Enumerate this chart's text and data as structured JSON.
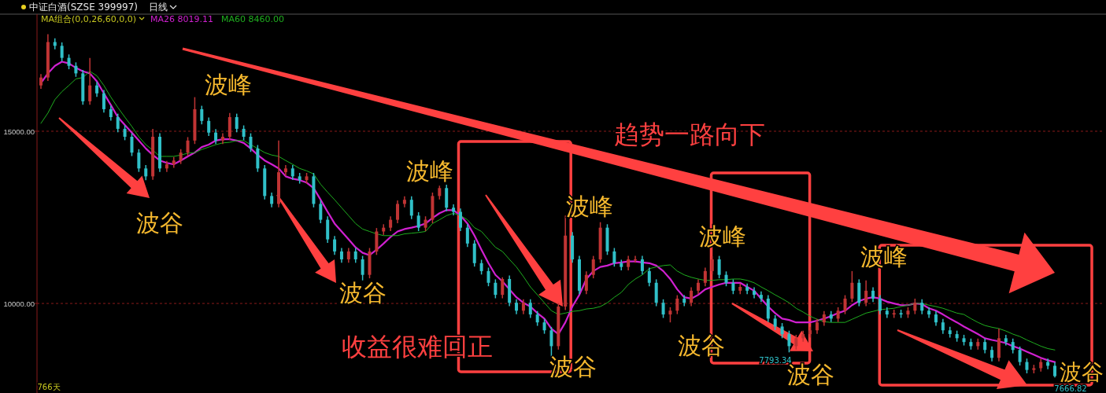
{
  "chart_data": {
    "type": "candlestick",
    "title": "中证白酒(SZSE 399997)",
    "subtitle": "日线",
    "legend_title": "MA组合(0,0,26,60,0,0)",
    "legend": "top left",
    "grid": "y",
    "ylim": [
      7400,
      18400
    ],
    "yticks": [
      {
        "value": 10000,
        "label": "10000.00"
      },
      {
        "value": 15000,
        "label": "15000.00"
      }
    ],
    "categories": [
      null,
      null,
      null,
      null,
      null,
      null,
      null,
      null,
      null,
      null,
      null,
      null,
      null,
      null,
      null,
      null,
      null,
      null,
      null,
      null,
      null,
      null,
      null,
      null,
      null,
      null,
      null,
      null,
      null,
      null,
      null,
      null,
      null,
      null,
      null,
      null,
      null,
      null,
      null,
      null,
      null,
      null,
      null,
      null,
      null,
      null,
      null,
      null,
      null,
      null,
      null,
      null,
      null,
      null,
      null,
      null,
      null,
      null,
      null,
      null,
      null,
      null,
      null,
      null,
      null,
      null,
      null,
      null,
      null,
      null,
      null,
      null,
      null,
      null,
      null,
      null,
      null,
      null,
      null,
      null,
      null,
      null,
      null,
      null,
      null,
      null,
      null,
      null,
      null,
      null,
      null,
      null,
      null,
      null,
      null,
      null,
      null,
      null,
      null,
      null,
      null,
      null,
      null,
      null,
      null,
      null,
      null,
      null,
      null,
      null,
      null,
      null,
      null,
      null,
      null,
      null,
      null,
      null,
      null,
      null,
      null,
      null,
      null,
      null,
      null,
      null,
      null,
      null,
      null,
      null,
      null,
      null,
      null,
      null,
      null,
      null,
      null,
      null,
      null,
      null,
      null,
      null,
      null,
      null,
      null,
      null
    ],
    "ohlc": [
      [
        16330,
        16660,
        16230,
        16560
      ],
      [
        16560,
        17820,
        16460,
        17590
      ],
      [
        17590,
        17700,
        17380,
        17480
      ],
      [
        17480,
        17580,
        17030,
        17130
      ],
      [
        17130,
        17230,
        16800,
        16900
      ],
      [
        16900,
        17000,
        16580,
        16680
      ],
      [
        16680,
        16780,
        15770,
        15870
      ],
      [
        15870,
        17130,
        15770,
        16330
      ],
      [
        16330,
        16430,
        16000,
        16100
      ],
      [
        16100,
        16200,
        15540,
        15640
      ],
      [
        15640,
        15740,
        15310,
        15410
      ],
      [
        15410,
        15510,
        14970,
        15070
      ],
      [
        15070,
        15170,
        14740,
        14840
      ],
      [
        14840,
        14940,
        14280,
        14380
      ],
      [
        14380,
        14480,
        13820,
        13920
      ],
      [
        13920,
        14020,
        13580,
        13690
      ],
      [
        13690,
        15070,
        13590,
        14840
      ],
      [
        14840,
        14940,
        13820,
        13920
      ],
      [
        13920,
        14140,
        13820,
        14040
      ],
      [
        14040,
        14250,
        13940,
        14150
      ],
      [
        14150,
        14480,
        14050,
        14380
      ],
      [
        14380,
        14830,
        14280,
        14730
      ],
      [
        14730,
        15990,
        14630,
        15640
      ],
      [
        15640,
        15740,
        15200,
        15300
      ],
      [
        15300,
        15400,
        14860,
        14960
      ],
      [
        14960,
        15060,
        14630,
        14730
      ],
      [
        14730,
        14940,
        14630,
        14840
      ],
      [
        14840,
        15530,
        14740,
        15410
      ],
      [
        15410,
        15510,
        14970,
        15070
      ],
      [
        15070,
        15170,
        14740,
        14840
      ],
      [
        14840,
        14940,
        14400,
        14500
      ],
      [
        14500,
        14600,
        13820,
        13920
      ],
      [
        13920,
        14020,
        13020,
        13120
      ],
      [
        13120,
        13220,
        12790,
        12890
      ],
      [
        12890,
        14730,
        12790,
        13810
      ],
      [
        13810,
        14020,
        13710,
        13920
      ],
      [
        13920,
        14020,
        13590,
        13690
      ],
      [
        13690,
        13790,
        13480,
        13580
      ],
      [
        13580,
        13790,
        13480,
        13690
      ],
      [
        13690,
        13790,
        12790,
        12890
      ],
      [
        12890,
        12990,
        12330,
        12430
      ],
      [
        12430,
        12530,
        11760,
        11860
      ],
      [
        11860,
        11960,
        11410,
        11510
      ],
      [
        11510,
        11610,
        11180,
        11280
      ],
      [
        11280,
        11610,
        11180,
        11510
      ],
      [
        11510,
        11610,
        11180,
        11280
      ],
      [
        11280,
        11380,
        10670,
        10830
      ],
      [
        10830,
        11610,
        10730,
        11510
      ],
      [
        11510,
        12190,
        11410,
        12090
      ],
      [
        12090,
        12300,
        11990,
        12200
      ],
      [
        12200,
        12530,
        12100,
        12430
      ],
      [
        12430,
        12990,
        12330,
        12890
      ],
      [
        12890,
        13110,
        12790,
        13010
      ],
      [
        13010,
        13110,
        12450,
        12550
      ],
      [
        12550,
        12650,
        12100,
        12200
      ],
      [
        12200,
        12530,
        12100,
        12430
      ],
      [
        12430,
        13220,
        12330,
        13120
      ],
      [
        13120,
        13420,
        13020,
        13350
      ],
      [
        13350,
        13450,
        12680,
        12780
      ],
      [
        12780,
        12880,
        12560,
        12660
      ],
      [
        12660,
        12760,
        12100,
        12200
      ],
      [
        12200,
        12300,
        11640,
        11740
      ],
      [
        11740,
        11840,
        11070,
        11170
      ],
      [
        11170,
        11270,
        10840,
        10940
      ],
      [
        10940,
        11040,
        10500,
        10600
      ],
      [
        10600,
        10700,
        10150,
        10250
      ],
      [
        10250,
        10760,
        10150,
        10710
      ],
      [
        10710,
        10810,
        9920,
        10020
      ],
      [
        10020,
        10120,
        9690,
        9790
      ],
      [
        9790,
        10120,
        9690,
        10020
      ],
      [
        10020,
        10120,
        9580,
        9680
      ],
      [
        9680,
        9780,
        9350,
        9450
      ],
      [
        9450,
        9550,
        9120,
        9220
      ],
      [
        9220,
        9320,
        8420,
        8760
      ],
      [
        8760,
        10010,
        8660,
        9910
      ],
      [
        9910,
        12550,
        9810,
        11970
      ],
      [
        11970,
        12070,
        11180,
        11280
      ],
      [
        11280,
        11380,
        10270,
        10370
      ],
      [
        10370,
        10930,
        10270,
        10830
      ],
      [
        10830,
        11380,
        10730,
        11280
      ],
      [
        11280,
        12360,
        11180,
        12200
      ],
      [
        12200,
        12300,
        11410,
        11510
      ],
      [
        11510,
        11610,
        11070,
        11170
      ],
      [
        11170,
        11270,
        10960,
        11060
      ],
      [
        11060,
        11380,
        10960,
        11280
      ],
      [
        11280,
        11380,
        11180,
        11280
      ],
      [
        11280,
        11380,
        10840,
        10940
      ],
      [
        10940,
        11040,
        10500,
        10600
      ],
      [
        10600,
        10700,
        9920,
        10020
      ],
      [
        10020,
        10120,
        9580,
        9680
      ],
      [
        9680,
        9890,
        9450,
        9790
      ],
      [
        9790,
        10240,
        9690,
        10140
      ],
      [
        10140,
        10240,
        9920,
        10020
      ],
      [
        10020,
        10470,
        9920,
        10370
      ],
      [
        10370,
        10700,
        10270,
        10600
      ],
      [
        10600,
        11040,
        10500,
        10940
      ],
      [
        10940,
        11370,
        10840,
        11280
      ],
      [
        11280,
        11380,
        10730,
        10830
      ],
      [
        10830,
        10930,
        10500,
        10600
      ],
      [
        10600,
        10700,
        10270,
        10370
      ],
      [
        10370,
        10580,
        10270,
        10480
      ],
      [
        10480,
        10580,
        10270,
        10370
      ],
      [
        10370,
        10470,
        10150,
        10250
      ],
      [
        10250,
        10350,
        10040,
        10140
      ],
      [
        10140,
        10240,
        9460,
        9560
      ],
      [
        9560,
        9660,
        9230,
        9330
      ],
      [
        9330,
        9430,
        8990,
        9110
      ],
      [
        9110,
        9210,
        8580,
        8760
      ],
      [
        8760,
        9090,
        8660,
        8990
      ],
      [
        8990,
        9210,
        8890,
        9110
      ],
      [
        9110,
        9320,
        9010,
        9220
      ],
      [
        9220,
        9550,
        9120,
        9450
      ],
      [
        9450,
        9780,
        9350,
        9680
      ],
      [
        9680,
        9780,
        9460,
        9560
      ],
      [
        9560,
        9890,
        9460,
        9790
      ],
      [
        9790,
        10240,
        9690,
        10140
      ],
      [
        10140,
        10940,
        10040,
        10600
      ],
      [
        10600,
        10700,
        9920,
        10020
      ],
      [
        10020,
        10670,
        9920,
        10370
      ],
      [
        10370,
        10470,
        10040,
        10140
      ],
      [
        10140,
        10240,
        9690,
        9790
      ],
      [
        9790,
        9890,
        9580,
        9680
      ],
      [
        9680,
        9820,
        9580,
        9720
      ],
      [
        9720,
        9820,
        9580,
        9680
      ],
      [
        9680,
        9890,
        9580,
        9790
      ],
      [
        9790,
        10140,
        9690,
        10020
      ],
      [
        10020,
        10120,
        9690,
        9790
      ],
      [
        9790,
        9890,
        9580,
        9680
      ],
      [
        9680,
        9780,
        9350,
        9450
      ],
      [
        9450,
        9550,
        9120,
        9220
      ],
      [
        9220,
        9320,
        9010,
        9110
      ],
      [
        9110,
        9210,
        8890,
        8990
      ],
      [
        8990,
        9090,
        8780,
        8880
      ],
      [
        8880,
        8980,
        8660,
        8760
      ],
      [
        8760,
        8980,
        8660,
        8880
      ],
      [
        8880,
        8980,
        8550,
        8650
      ],
      [
        8650,
        8750,
        8320,
        8420
      ],
      [
        8420,
        9270,
        8320,
        8990
      ],
      [
        8990,
        9090,
        8780,
        8880
      ],
      [
        8880,
        8980,
        8550,
        8650
      ],
      [
        8650,
        8750,
        8200,
        8300
      ],
      [
        8300,
        8400,
        7970,
        8070
      ],
      [
        8070,
        8220,
        7970,
        8120
      ],
      [
        8120,
        8400,
        8020,
        8300
      ],
      [
        8300,
        8400,
        8090,
        8190
      ],
      [
        8190,
        8290,
        7850,
        7890
      ]
    ],
    "colors": [
      "#c03434",
      "#c03434",
      "#30c0c8",
      "#30c0c8",
      "#30c0c8",
      "#30c0c8",
      "#30c0c8",
      "#c03434",
      "#30c0c8",
      "#30c0c8",
      "#30c0c8",
      "#30c0c8",
      "#30c0c8",
      "#30c0c8",
      "#30c0c8",
      "#30c0c8",
      "#c03434",
      "#30c0c8",
      "#c03434",
      "#c03434",
      "#c03434",
      "#c03434",
      "#c03434",
      "#30c0c8",
      "#30c0c8",
      "#30c0c8",
      "#c03434",
      "#c03434",
      "#30c0c8",
      "#30c0c8",
      "#30c0c8",
      "#30c0c8",
      "#30c0c8",
      "#30c0c8",
      "#c03434",
      "#c03434",
      "#30c0c8",
      "#30c0c8",
      "#c03434",
      "#30c0c8",
      "#30c0c8",
      "#30c0c8",
      "#30c0c8",
      "#30c0c8",
      "#c03434",
      "#30c0c8",
      "#30c0c8",
      "#c03434",
      "#c03434",
      "#c03434",
      "#c03434",
      "#c03434",
      "#c03434",
      "#30c0c8",
      "#30c0c8",
      "#c03434",
      "#c03434",
      "#c03434",
      "#30c0c8",
      "#30c0c8",
      "#30c0c8",
      "#30c0c8",
      "#30c0c8",
      "#30c0c8",
      "#30c0c8",
      "#30c0c8",
      "#c03434",
      "#30c0c8",
      "#30c0c8",
      "#c03434",
      "#30c0c8",
      "#30c0c8",
      "#30c0c8",
      "#30c0c8",
      "#c03434",
      "#c03434",
      "#30c0c8",
      "#30c0c8",
      "#c03434",
      "#c03434",
      "#c03434",
      "#30c0c8",
      "#30c0c8",
      "#30c0c8",
      "#c03434",
      "#c03434",
      "#30c0c8",
      "#30c0c8",
      "#30c0c8",
      "#30c0c8",
      "#c03434",
      "#c03434",
      "#30c0c8",
      "#c03434",
      "#c03434",
      "#c03434",
      "#c03434",
      "#30c0c8",
      "#30c0c8",
      "#30c0c8",
      "#c03434",
      "#30c0c8",
      "#30c0c8",
      "#30c0c8",
      "#30c0c8",
      "#30c0c8",
      "#30c0c8",
      "#30c0c8",
      "#c03434",
      "#c03434",
      "#c03434",
      "#c03434",
      "#c03434",
      "#30c0c8",
      "#c03434",
      "#c03434",
      "#c03434",
      "#30c0c8",
      "#c03434",
      "#30c0c8",
      "#30c0c8",
      "#30c0c8",
      "#c03434",
      "#30c0c8",
      "#c03434",
      "#c03434",
      "#30c0c8",
      "#30c0c8",
      "#30c0c8",
      "#30c0c8",
      "#30c0c8",
      "#30c0c8",
      "#30c0c8",
      "#30c0c8",
      "#c03434",
      "#30c0c8",
      "#30c0c8",
      "#c03434",
      "#30c0c8",
      "#30c0c8",
      "#30c0c8",
      "#30c0c8",
      "#c03434",
      "#c03434",
      "#30c0c8",
      "#30c0c8"
    ],
    "series": [
      {
        "type": "line",
        "name": "MA26 8019.11",
        "color": "#d020d0",
        "values": [
          16400,
          16680,
          16900,
          17020,
          16970,
          16840,
          16740,
          16680,
          16450,
          16100,
          15760,
          15410,
          15180,
          14960,
          14730,
          14500,
          14310,
          14150,
          14080,
          14040,
          14150,
          14270,
          14380,
          14540,
          14610,
          14730,
          14770,
          14770,
          14730,
          14660,
          14500,
          14310,
          14150,
          14040,
          13920,
          13690,
          13620,
          13580,
          13510,
          13350,
          13010,
          12660,
          12320,
          12090,
          11860,
          11630,
          11470,
          11400,
          11560,
          11740,
          11930,
          12090,
          12160,
          12200,
          12250,
          12320,
          12480,
          12620,
          12710,
          12710,
          12550,
          12320,
          11970,
          11560,
          11170,
          10830,
          10640,
          10410,
          10180,
          10020,
          9910,
          9720,
          9560,
          9270,
          9110,
          9450,
          9910,
          10250,
          10710,
          10940,
          11060,
          11100,
          11170,
          11190,
          11220,
          11220,
          11190,
          11170,
          11100,
          10940,
          10710,
          10410,
          10180,
          10140,
          10250,
          10410,
          10480,
          10550,
          10600,
          10600,
          10600,
          10480,
          10370,
          10140,
          9910,
          9720,
          9560,
          9520,
          9450,
          9450,
          9450,
          9500,
          9560,
          9630,
          9720,
          9790,
          9950,
          10070,
          10140,
          10180,
          10140,
          10050,
          10000,
          9950,
          9950,
          10000,
          9980,
          9860,
          9790,
          9680,
          9560,
          9450,
          9330,
          9220,
          9110,
          8990,
          8940,
          8900,
          8850,
          8760,
          8690,
          8600,
          8510,
          8420,
          8350,
          8300
        ]
      },
      {
        "type": "line",
        "name": "MA60 8460.00",
        "color": "#1fae1f",
        "values": [
          15230,
          15530,
          15920,
          16150,
          16330,
          16520,
          16560,
          16740,
          16610,
          16330,
          15990,
          15690,
          15410,
          15140,
          14840,
          14610,
          14450,
          14270,
          14270,
          14270,
          14310,
          14360,
          14380,
          14470,
          14540,
          14610,
          14660,
          14680,
          14730,
          14730,
          14610,
          14500,
          14380,
          14310,
          14270,
          14150,
          14040,
          13920,
          13850,
          13760,
          13460,
          13230,
          13010,
          12780,
          12550,
          12320,
          12160,
          12090,
          12020,
          11970,
          11970,
          11970,
          12020,
          12040,
          12060,
          12090,
          12320,
          12430,
          12550,
          12620,
          12550,
          12430,
          12200,
          12090,
          11860,
          11630,
          11510,
          11280,
          11060,
          10780,
          10480,
          10250,
          10020,
          9790,
          9680,
          9720,
          9770,
          9790,
          9840,
          9860,
          9910,
          10020,
          10180,
          10320,
          10550,
          10710,
          10830,
          11010,
          11060,
          11100,
          11120,
          10940,
          10830,
          10760,
          10710,
          10670,
          10670,
          10690,
          10690,
          10710,
          10710,
          10670,
          10600,
          10480,
          10370,
          10250,
          10140,
          10020,
          9860,
          9750,
          9630,
          9540,
          9470,
          9450,
          9450,
          9450,
          9540,
          9630,
          9720,
          9770,
          9820,
          9840,
          9860,
          9910,
          9950,
          10000,
          10000,
          9950,
          9910,
          9860,
          9790,
          9720,
          9680,
          9560,
          9450,
          9360,
          9310,
          9270,
          9200,
          9110,
          9040,
          8940,
          8850,
          8760,
          8690,
          8650
        ]
      }
    ],
    "annotations": [
      "波峰",
      "波峰",
      "波峰",
      "波峰",
      "波峰",
      "波谷",
      "波谷",
      "波谷",
      "波谷",
      "波谷",
      "波谷",
      "趋势一路向下",
      "收益很难回正",
      "766天",
      "7793.34",
      "7666.82"
    ]
  }
}
